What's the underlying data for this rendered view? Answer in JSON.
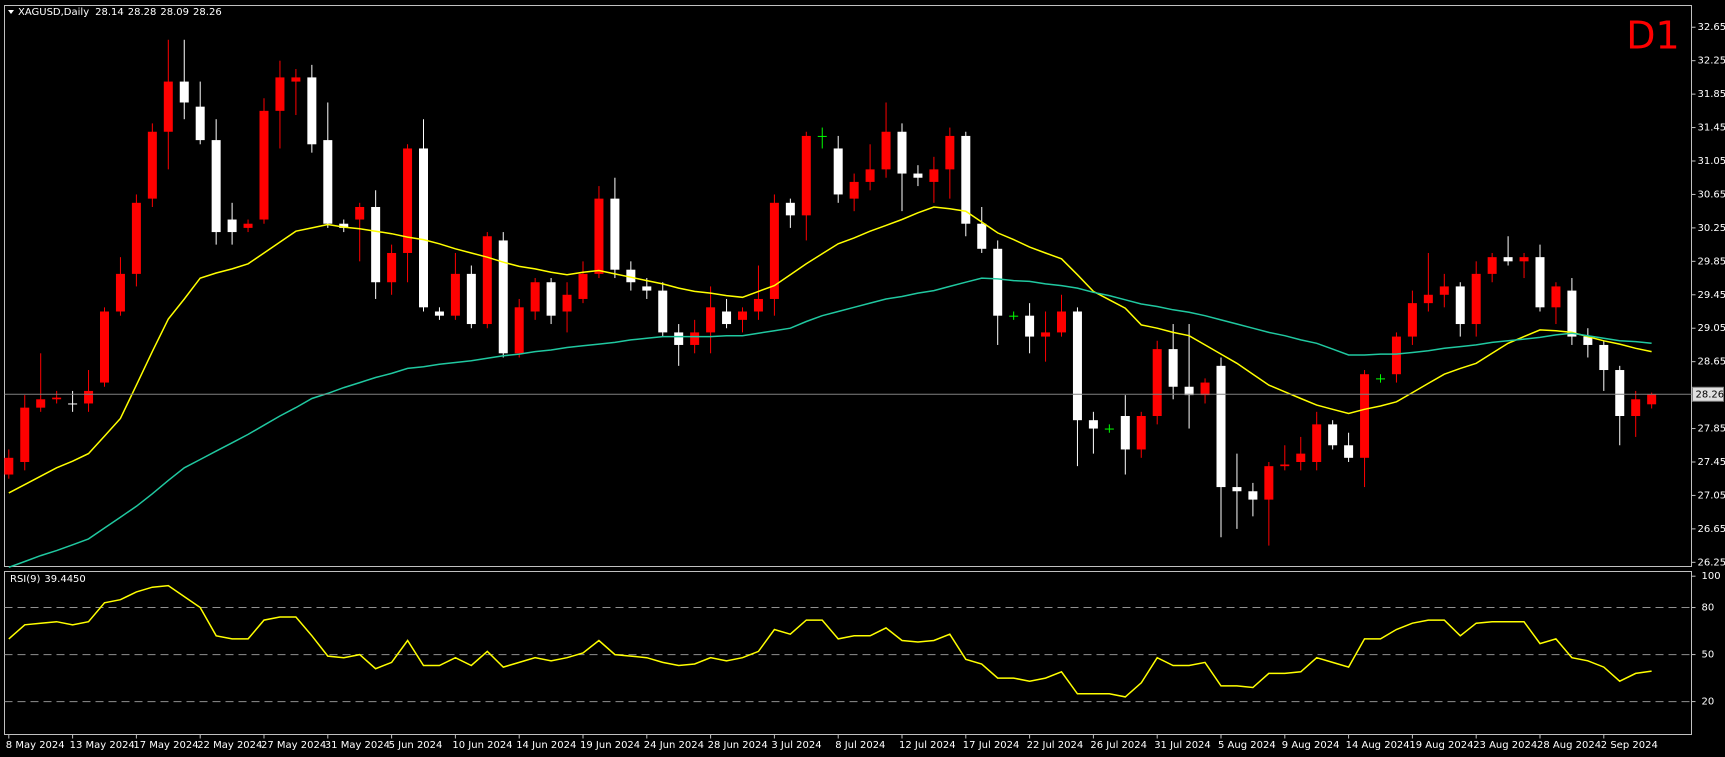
{
  "chart_data": [
    {
      "type": "candlestick",
      "symbol": "XAGUSD,Daily",
      "annotation": "D1",
      "annotation_color": "#ff0000",
      "up_color": "#ff0000",
      "down_color": "#ffffff",
      "doji_color": "#00ff00",
      "last_price_color": "#808080",
      "ylim": [
        26.2,
        32.91
      ],
      "yticks": [
        26.25,
        26.65,
        27.05,
        27.45,
        27.85,
        28.65,
        29.05,
        29.45,
        29.85,
        30.25,
        30.65,
        31.05,
        31.45,
        31.85,
        32.25,
        32.65
      ],
      "categories": [
        "8 May 2024",
        null,
        null,
        null,
        "13 May 2024",
        null,
        null,
        null,
        "17 May 2024",
        null,
        null,
        null,
        "22 May 2024",
        null,
        null,
        null,
        "27 May 2024",
        null,
        null,
        null,
        "31 May 2024",
        null,
        null,
        null,
        "5 Jun 2024",
        null,
        null,
        null,
        "10 Jun 2024",
        null,
        null,
        null,
        "14 Jun 2024",
        null,
        null,
        null,
        "19 Jun 2024",
        null,
        null,
        null,
        "24 Jun 2024",
        null,
        null,
        null,
        "28 Jun 2024",
        null,
        null,
        null,
        "3 Jul 2024",
        null,
        null,
        null,
        "8 Jul 2024",
        null,
        null,
        null,
        "12 Jul 2024",
        null,
        null,
        null,
        "17 Jul 2024",
        null,
        null,
        null,
        "22 Jul 2024",
        null,
        null,
        null,
        "26 Jul 2024",
        null,
        null,
        null,
        "31 Jul 2024",
        null,
        null,
        null,
        "5 Aug 2024",
        null,
        null,
        null,
        "9 Aug 2024",
        null,
        null,
        null,
        "14 Aug 2024",
        null,
        null,
        null,
        "19 Aug 2024",
        null,
        null,
        null,
        "23 Aug 2024",
        null,
        null,
        null,
        "28 Aug 2024",
        null,
        null,
        null,
        "2 Sep 2024",
        null,
        null,
        null
      ],
      "open": [
        27.3,
        27.45,
        28.1,
        28.2,
        28.15,
        28.15,
        28.4,
        29.25,
        29.7,
        30.6,
        31.4,
        32.0,
        31.7,
        31.3,
        30.35,
        30.25,
        30.35,
        31.65,
        32.0,
        32.05,
        31.3,
        30.3,
        30.35,
        30.5,
        29.6,
        29.95,
        31.2,
        29.25,
        29.2,
        29.7,
        29.1,
        30.1,
        28.75,
        29.25,
        29.6,
        29.25,
        29.4,
        29.7,
        30.6,
        29.75,
        29.55,
        29.5,
        29.0,
        28.85,
        29.0,
        29.25,
        29.15,
        29.25,
        29.4,
        30.55,
        30.4,
        31.35,
        31.2,
        30.6,
        30.8,
        30.95,
        31.4,
        30.9,
        30.8,
        30.95,
        31.35,
        30.3,
        30.0,
        29.2,
        29.2,
        28.95,
        29.0,
        29.25,
        27.95,
        27.85,
        28.0,
        27.6,
        28.0,
        28.8,
        28.35,
        28.25,
        28.6,
        27.15,
        27.1,
        27.0,
        27.4,
        27.45,
        27.45,
        27.9,
        27.65,
        27.5,
        28.45,
        28.5,
        28.95,
        29.35,
        29.45,
        29.55,
        29.1,
        29.7,
        29.9,
        29.85,
        29.9,
        29.3,
        29.5,
        28.95,
        28.85,
        28.55,
        28.0,
        28.14
      ],
      "high": [
        27.6,
        28.25,
        28.75,
        28.3,
        28.3,
        28.55,
        29.3,
        29.9,
        30.65,
        31.5,
        32.5,
        32.5,
        32.0,
        31.55,
        30.55,
        30.35,
        31.8,
        32.25,
        32.15,
        32.2,
        31.75,
        30.35,
        30.55,
        30.7,
        30.05,
        31.25,
        31.55,
        29.3,
        29.95,
        29.8,
        30.2,
        30.2,
        29.4,
        29.65,
        29.65,
        29.6,
        29.85,
        30.75,
        30.85,
        29.85,
        29.65,
        29.6,
        29.1,
        29.15,
        29.55,
        29.4,
        29.3,
        29.8,
        30.65,
        30.6,
        31.4,
        31.45,
        31.35,
        30.9,
        31.25,
        31.75,
        31.5,
        31.0,
        31.1,
        31.45,
        31.4,
        30.5,
        30.1,
        29.25,
        29.35,
        29.25,
        29.45,
        29.3,
        28.05,
        27.9,
        28.25,
        28.05,
        28.9,
        29.1,
        29.1,
        28.45,
        28.7,
        27.55,
        27.2,
        27.45,
        27.65,
        27.75,
        28.05,
        27.95,
        27.8,
        28.55,
        28.5,
        29.0,
        29.5,
        29.95,
        29.7,
        29.6,
        29.85,
        29.95,
        30.15,
        29.95,
        30.05,
        29.6,
        29.65,
        29.05,
        28.9,
        28.6,
        28.3,
        28.28
      ],
      "low": [
        27.25,
        27.35,
        28.05,
        28.15,
        28.05,
        28.05,
        28.35,
        29.2,
        29.55,
        30.5,
        30.95,
        31.55,
        31.25,
        30.05,
        30.05,
        30.2,
        30.3,
        31.2,
        31.6,
        31.15,
        30.25,
        30.2,
        29.85,
        29.4,
        29.45,
        29.6,
        29.25,
        29.15,
        29.15,
        29.05,
        29.05,
        28.7,
        28.7,
        29.15,
        29.1,
        29.0,
        29.35,
        29.65,
        29.65,
        29.5,
        29.4,
        28.95,
        28.6,
        28.75,
        28.75,
        29.05,
        29.0,
        29.15,
        29.2,
        30.25,
        30.1,
        31.2,
        30.55,
        30.45,
        30.7,
        30.85,
        30.45,
        30.75,
        30.55,
        30.6,
        30.15,
        29.95,
        28.85,
        29.15,
        28.75,
        28.65,
        28.95,
        27.4,
        27.55,
        27.8,
        27.3,
        27.5,
        27.9,
        28.2,
        27.85,
        28.15,
        26.55,
        26.65,
        26.8,
        26.45,
        27.35,
        27.35,
        27.35,
        27.6,
        27.45,
        27.15,
        28.4,
        28.4,
        28.85,
        29.25,
        29.3,
        28.95,
        28.95,
        29.6,
        29.8,
        29.65,
        29.25,
        29.1,
        28.85,
        28.7,
        28.3,
        27.65,
        27.75,
        28.09
      ],
      "close": [
        27.5,
        28.1,
        28.2,
        28.22,
        28.14,
        28.3,
        29.25,
        29.7,
        30.55,
        31.4,
        32.0,
        31.75,
        31.3,
        30.2,
        30.2,
        30.3,
        31.65,
        32.05,
        32.05,
        31.25,
        30.3,
        30.25,
        30.5,
        29.6,
        29.95,
        31.2,
        29.3,
        29.2,
        29.7,
        29.1,
        30.15,
        28.75,
        29.3,
        29.6,
        29.2,
        29.45,
        29.7,
        30.6,
        29.75,
        29.6,
        29.5,
        29.0,
        28.85,
        29.0,
        29.3,
        29.1,
        29.25,
        29.4,
        30.55,
        30.4,
        31.35,
        31.35,
        30.65,
        30.8,
        30.95,
        31.4,
        30.9,
        30.85,
        30.95,
        31.35,
        30.3,
        30.0,
        29.2,
        29.2,
        28.95,
        29.0,
        29.25,
        27.95,
        27.85,
        27.85,
        27.6,
        28.0,
        28.8,
        28.35,
        28.25,
        28.4,
        27.15,
        27.1,
        27.0,
        27.4,
        27.42,
        27.55,
        27.9,
        27.65,
        27.5,
        28.5,
        28.45,
        28.95,
        29.35,
        29.45,
        29.55,
        29.1,
        29.7,
        29.9,
        29.85,
        29.9,
        29.3,
        29.55,
        28.95,
        28.85,
        28.55,
        28.0,
        28.2,
        28.26
      ],
      "lines": [
        {
          "color": "#ffff00",
          "values": [
            27.08,
            27.18,
            27.28,
            27.38,
            27.46,
            27.55,
            27.76,
            27.97,
            28.37,
            28.77,
            29.16,
            29.4,
            29.65,
            29.71,
            29.76,
            29.82,
            29.95,
            30.08,
            30.21,
            30.25,
            30.29,
            30.26,
            30.24,
            30.21,
            30.18,
            30.14,
            30.11,
            30.06,
            30.0,
            29.95,
            29.9,
            29.84,
            29.79,
            29.76,
            29.72,
            29.69,
            29.72,
            29.74,
            29.7,
            29.66,
            29.62,
            29.58,
            29.53,
            29.49,
            29.47,
            29.44,
            29.42,
            29.49,
            29.56,
            29.69,
            29.82,
            29.94,
            30.06,
            30.13,
            30.21,
            30.28,
            30.35,
            30.43,
            30.5,
            30.48,
            30.45,
            30.32,
            30.19,
            30.11,
            30.02,
            29.95,
            29.88,
            29.69,
            29.49,
            29.39,
            29.29,
            29.09,
            29.05,
            29.0,
            28.96,
            28.85,
            28.74,
            28.63,
            28.5,
            28.37,
            28.29,
            28.21,
            28.13,
            28.08,
            28.03,
            28.08,
            28.12,
            28.17,
            28.28,
            28.39,
            28.5,
            28.57,
            28.63,
            28.75,
            28.87,
            28.95,
            29.03,
            29.02,
            29.0,
            28.95,
            28.9,
            28.86,
            28.81,
            28.77
          ]
        },
        {
          "color": "#20c8a0",
          "values": [
            26.19,
            26.26,
            26.33,
            26.39,
            26.46,
            26.53,
            26.66,
            26.79,
            26.92,
            27.07,
            27.23,
            27.38,
            27.48,
            27.58,
            27.68,
            27.78,
            27.89,
            28.0,
            28.1,
            28.21,
            28.27,
            28.34,
            28.4,
            28.46,
            28.51,
            28.57,
            28.59,
            28.62,
            28.64,
            28.66,
            28.69,
            28.72,
            28.74,
            28.77,
            28.79,
            28.82,
            28.84,
            28.86,
            28.88,
            28.91,
            28.93,
            28.95,
            28.95,
            28.95,
            28.95,
            28.96,
            28.96,
            28.99,
            29.02,
            29.05,
            29.13,
            29.2,
            29.25,
            29.3,
            29.35,
            29.4,
            29.43,
            29.47,
            29.5,
            29.55,
            29.6,
            29.65,
            29.64,
            29.62,
            29.61,
            29.58,
            29.56,
            29.53,
            29.48,
            29.44,
            29.39,
            29.34,
            29.31,
            29.27,
            29.24,
            29.2,
            29.15,
            29.1,
            29.05,
            29.0,
            28.96,
            28.91,
            28.87,
            28.8,
            28.73,
            28.73,
            28.74,
            28.74,
            28.76,
            28.78,
            28.81,
            28.83,
            28.85,
            28.88,
            28.9,
            28.92,
            28.94,
            28.97,
            28.99,
            28.96,
            28.93,
            28.9,
            28.89,
            28.87
          ]
        }
      ]
    },
    {
      "type": "line",
      "title": "RSI(9)",
      "color": "#ffff00",
      "level_color": "#909090",
      "ylim": [
        -1,
        103
      ],
      "yticks": [
        20,
        50,
        80,
        100
      ],
      "levels": [
        20,
        50,
        80
      ],
      "values": [
        60,
        69,
        70,
        71,
        69,
        71,
        83,
        85,
        90,
        93,
        94,
        87,
        80,
        62,
        60,
        60,
        72,
        74,
        74,
        62,
        49,
        48,
        50,
        41,
        45,
        59,
        43,
        43,
        48,
        43,
        52,
        42,
        45,
        48,
        46,
        48,
        51,
        59,
        50,
        49,
        48,
        45,
        43,
        44,
        48,
        46,
        48,
        52,
        66,
        63,
        72,
        72,
        60,
        62,
        62,
        67,
        59,
        58,
        59,
        63,
        47,
        44,
        35,
        35,
        33,
        35,
        39,
        25,
        25,
        25,
        23,
        32,
        48,
        43,
        43,
        45,
        30,
        30,
        29,
        38,
        38,
        39,
        48,
        45,
        42,
        60,
        60,
        66,
        70,
        72,
        72,
        62,
        70,
        71,
        71,
        71,
        57,
        60,
        48,
        46,
        42,
        33,
        38,
        39.445
      ],
      "value_labels": [
        null,
        null,
        null,
        null,
        null,
        null,
        null,
        null,
        null,
        null,
        null,
        null,
        null,
        null,
        null,
        null,
        null,
        null,
        null,
        null,
        null,
        null,
        null,
        null,
        null,
        null,
        null,
        null,
        null,
        null,
        null,
        null,
        null,
        null,
        null,
        null,
        null,
        null,
        null,
        null,
        null,
        null,
        null,
        null,
        null,
        null,
        null,
        null,
        null,
        null,
        null,
        null,
        null,
        null,
        null,
        null,
        null,
        null,
        null,
        null,
        null,
        null,
        null,
        null,
        null,
        null,
        null,
        null,
        null,
        null,
        null,
        null,
        null,
        null,
        null,
        null,
        null,
        null,
        null,
        null,
        null,
        null,
        null,
        null,
        null,
        null,
        null,
        null,
        null,
        null,
        null,
        null,
        null,
        null,
        null,
        null,
        null,
        null,
        null,
        null,
        null,
        null,
        null,
        "39.4450"
      ]
    }
  ]
}
